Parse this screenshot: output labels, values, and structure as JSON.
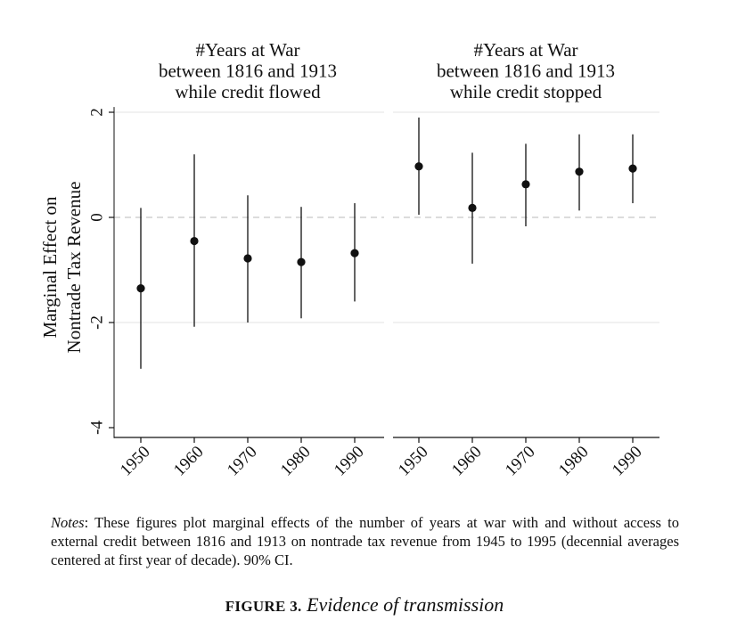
{
  "chart_data": [
    {
      "type": "scatter",
      "subtype": "point-estimates with 90% CI",
      "title": [
        "#Years at War",
        "between 1816 and 1913",
        "while credit flowed"
      ],
      "ylabel": [
        "Marginal Effect on",
        "Nontrade Tax Revenue"
      ],
      "xlabel": "",
      "categories": [
        "1950",
        "1960",
        "1970",
        "1980",
        "1990"
      ],
      "values": [
        -1.35,
        -0.45,
        -0.78,
        -0.85,
        -0.68
      ],
      "ci_low": [
        -2.88,
        -2.08,
        -2.0,
        -1.92,
        -1.6
      ],
      "ci_high": [
        0.18,
        1.2,
        0.42,
        0.2,
        0.27
      ],
      "ylim": [
        -4.2,
        2.1
      ],
      "yticks": [
        -4,
        -2,
        0,
        2
      ],
      "reference_line": 0,
      "grid": "horizontal"
    },
    {
      "type": "scatter",
      "subtype": "point-estimates with 90% CI",
      "title": [
        "#Years at War",
        "between 1816 and 1913",
        "while credit stopped"
      ],
      "xlabel": "",
      "categories": [
        "1950",
        "1960",
        "1970",
        "1980",
        "1990"
      ],
      "values": [
        0.97,
        0.18,
        0.63,
        0.87,
        0.93
      ],
      "ci_low": [
        0.05,
        -0.88,
        -0.17,
        0.13,
        0.27
      ],
      "ci_high": [
        1.9,
        1.23,
        1.4,
        1.58,
        1.58
      ],
      "ylim": [
        -4.2,
        2.1
      ],
      "yticks": [
        -4,
        -2,
        0,
        2
      ],
      "reference_line": 0,
      "grid": "horizontal"
    }
  ],
  "caption": {
    "label": "Notes",
    "text": ": These figures plot marginal effects of the number of years at war with and without access to external credit between 1816 and 1913 on nontrade tax revenue from 1945 to 1995 (decennial averages centered at first year of decade). 90% CI."
  },
  "figure": {
    "number": "FIGURE 3.",
    "title": "Evidence of transmission"
  },
  "colors": {
    "ink": "#111111",
    "grid": "#e3e3e3",
    "zero_line": "#c8c8c8"
  }
}
